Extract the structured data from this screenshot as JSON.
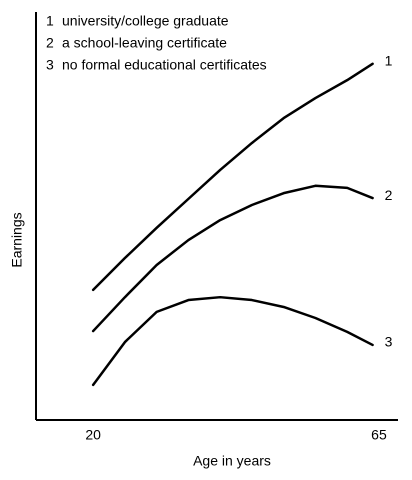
{
  "chart_data": {
    "type": "line",
    "x_label": "Age in years",
    "y_label": "Earnings",
    "x": [
      20,
      25,
      30,
      35,
      40,
      45,
      50,
      55,
      60,
      64
    ],
    "xlim": [
      11,
      68
    ],
    "xticks": [
      20,
      65
    ],
    "ylim": [
      0,
      100
    ],
    "series": [
      {
        "label": "1",
        "name": "university/college graduate",
        "color": "#000000",
        "values": [
          31.9,
          39.7,
          47.1,
          54.2,
          61.3,
          67.9,
          74,
          78.9,
          83.3,
          87.3
        ]
      },
      {
        "label": "2",
        "name": "a school-leaving certificate",
        "color": "#000000",
        "values": [
          21.8,
          30.1,
          38,
          44.1,
          49,
          52.7,
          55.6,
          57.4,
          56.9,
          54.4
        ]
      },
      {
        "label": "3",
        "name": "no formal educational certificates",
        "color": "#000000",
        "values": [
          8.6,
          19.1,
          26.5,
          29.4,
          30.1,
          29.4,
          27.7,
          25,
          21.6,
          18.4
        ]
      }
    ]
  }
}
